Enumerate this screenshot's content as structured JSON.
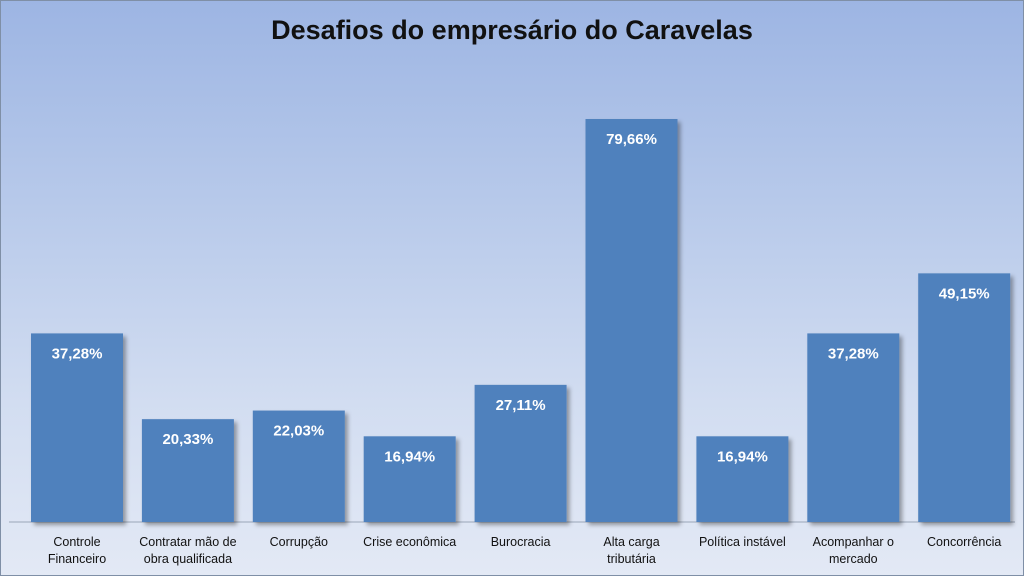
{
  "chart_data": {
    "type": "bar",
    "title": "Desafios do empresário do Caravelas",
    "categories": [
      [
        "Controle",
        "Financeiro"
      ],
      [
        "Contratar mão de",
        "obra qualificada"
      ],
      [
        "Corrupção"
      ],
      [
        "Crise econômica"
      ],
      [
        "Burocracia"
      ],
      [
        "Alta carga",
        "tributária"
      ],
      [
        "Política instável"
      ],
      [
        "Acompanhar o",
        "mercado"
      ],
      [
        "Concorrência"
      ]
    ],
    "values": [
      37.28,
      20.33,
      22.03,
      16.94,
      27.11,
      79.66,
      16.94,
      37.28,
      49.15
    ],
    "data_labels": [
      "37,28%",
      "20,33%",
      "22,03%",
      "16,94%",
      "27,11%",
      "79,66%",
      "16,94%",
      "37,28%",
      "49,15%"
    ],
    "ylim": [
      0,
      100
    ],
    "grid": false,
    "legend": "none",
    "bar_color": "#4f81bd"
  }
}
